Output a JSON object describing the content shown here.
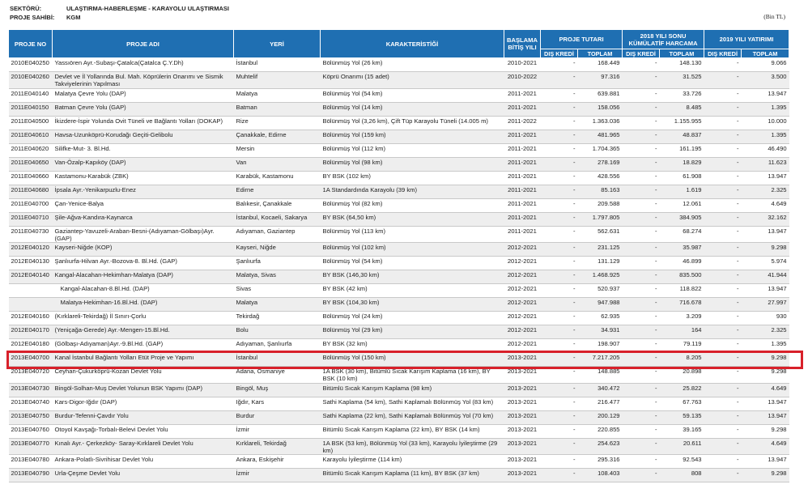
{
  "meta": {
    "sector_label": "SEKTÖRÜ:",
    "sector_value": "ULAŞTIRMA-HABERLEŞME - KARAYOLU ULAŞTIRMASI",
    "owner_label": "PROJE SAHİBİ:",
    "owner_value": "KGM",
    "unit": "(Bin TL)"
  },
  "headers": {
    "proje_no": "PROJE NO",
    "proje_adi": "PROJE ADI",
    "yeri": "YERİ",
    "karakteristik": "KARAKTERİSTİĞİ",
    "baslama_bitis": "BAŞLAMA BİTİŞ YILI",
    "proje_tutari": "PROJE TUTARI",
    "kumulatif": "2018 YILI SONU KÜMÜLATİF HARCAMA",
    "yatirim_2019": "2019 YILI YATIRIMI",
    "dis_kredi": "DIŞ KREDİ",
    "toplam": "TOPLAM"
  },
  "highlight_row": 23,
  "rows": [
    {
      "no": "2010E040250",
      "name": "Yassıören Ayr.-Subaşı-Çatalca(Çatalca Ç.Y.Dh)",
      "place": "İstanbul",
      "char": "Bölünmüş Yol (26 km)",
      "years": "2010-2021",
      "t_dk": "-",
      "t_top": "168.449",
      "k_dk": "-",
      "k_top": "148.130",
      "y_dk": "-",
      "y_top": "9.066"
    },
    {
      "no": "2010E040260",
      "name": "Devlet ve İl Yollarında Bul. Mah. Köprülerin Onarımı ve Sismik Takviyelerinin Yapılması",
      "place": "Muhtelif",
      "char": "Köprü Onarımı (15 adet)",
      "years": "2010-2022",
      "t_dk": "-",
      "t_top": "97.316",
      "k_dk": "-",
      "k_top": "31.525",
      "y_dk": "-",
      "y_top": "3.500"
    },
    {
      "no": "2011E040140",
      "name": "Malatya Çevre Yolu (DAP)",
      "place": "Malatya",
      "char": "Bölünmüş Yol (54 km)",
      "years": "2011-2021",
      "t_dk": "-",
      "t_top": "639.881",
      "k_dk": "-",
      "k_top": "33.726",
      "y_dk": "-",
      "y_top": "13.947"
    },
    {
      "no": "2011E040150",
      "name": "Batman Çevre Yolu (GAP)",
      "place": "Batman",
      "char": "Bölünmüş Yol (14 km)",
      "years": "2011-2021",
      "t_dk": "-",
      "t_top": "158.056",
      "k_dk": "-",
      "k_top": "8.485",
      "y_dk": "-",
      "y_top": "1.395"
    },
    {
      "no": "2011E040500",
      "name": "İkizdere-İspir Yolunda Ovit Tüneli ve Bağlantı Yolları (DOKAP)",
      "place": "Rize",
      "char": "Bölünmüş Yol (3,26 km), Çift Tüp Karayolu Tüneli (14.005 m)",
      "years": "2011-2022",
      "t_dk": "-",
      "t_top": "1.363.036",
      "k_dk": "-",
      "k_top": "1.155.955",
      "y_dk": "-",
      "y_top": "10.000"
    },
    {
      "no": "2011E040610",
      "name": "Havsa-Uzunköprü-Korudağı Geçiti-Gelibolu",
      "place": "Çanakkale, Edirne",
      "char": "Bölünmüş Yol (159 km)",
      "years": "2011-2021",
      "t_dk": "-",
      "t_top": "481.965",
      "k_dk": "-",
      "k_top": "48.837",
      "y_dk": "-",
      "y_top": "1.395"
    },
    {
      "no": "2011E040620",
      "name": "Silifke-Mut- 3. Bl.Hd.",
      "place": "Mersin",
      "char": "Bölünmüş Yol (112 km)",
      "years": "2011-2021",
      "t_dk": "-",
      "t_top": "1.704.365",
      "k_dk": "-",
      "k_top": "161.195",
      "y_dk": "-",
      "y_top": "46.490"
    },
    {
      "no": "2011E040650",
      "name": "Van-Özalp-Kapıköy (DAP)",
      "place": "Van",
      "char": "Bölünmüş Yol (98 km)",
      "years": "2011-2021",
      "t_dk": "-",
      "t_top": "278.169",
      "k_dk": "-",
      "k_top": "18.829",
      "y_dk": "-",
      "y_top": "11.623"
    },
    {
      "no": "2011E040660",
      "name": "Kastamonu-Karabük (ZBK)",
      "place": "Karabük, Kastamonu",
      "char": "BY BSK (102 km)",
      "years": "2011-2021",
      "t_dk": "-",
      "t_top": "428.556",
      "k_dk": "-",
      "k_top": "61.908",
      "y_dk": "-",
      "y_top": "13.947"
    },
    {
      "no": "2011E040680",
      "name": "İpsala Ayr.-Yenikarpuzlu-Enez",
      "place": "Edirne",
      "char": "1A Standardında Karayolu (39 km)",
      "years": "2011-2021",
      "t_dk": "-",
      "t_top": "85.163",
      "k_dk": "-",
      "k_top": "1.619",
      "y_dk": "-",
      "y_top": "2.325"
    },
    {
      "no": "2011E040700",
      "name": "Çan-Yenice-Balya",
      "place": "Balıkesir, Çanakkale",
      "char": "Bölünmüş Yol (82 km)",
      "years": "2011-2021",
      "t_dk": "-",
      "t_top": "209.588",
      "k_dk": "-",
      "k_top": "12.061",
      "y_dk": "-",
      "y_top": "4.649"
    },
    {
      "no": "2011E040710",
      "name": "Şile-Ağva-Kandıra-Kaynarca",
      "place": "İstanbul, Kocaeli, Sakarya",
      "char": "BY BSK (64,50 km)",
      "years": "2011-2021",
      "t_dk": "-",
      "t_top": "1.797.805",
      "k_dk": "-",
      "k_top": "384.905",
      "y_dk": "-",
      "y_top": "32.162"
    },
    {
      "no": "2011E040730",
      "name": "Gaziantep-Yavuzeli-Araban-Besni-(Adıyaman-Gölbaşı)Ayr. (GAP)",
      "place": "Adıyaman, Gaziantep",
      "char": "Bölünmüş Yol (113 km)",
      "years": "2011-2021",
      "t_dk": "-",
      "t_top": "562.631",
      "k_dk": "-",
      "k_top": "68.274",
      "y_dk": "-",
      "y_top": "13.947"
    },
    {
      "no": "2012E040120",
      "name": "Kayseri-Niğde (KOP)",
      "place": "Kayseri, Niğde",
      "char": "Bölünmüş Yol (102 km)",
      "years": "2012-2021",
      "t_dk": "-",
      "t_top": "231.125",
      "k_dk": "-",
      "k_top": "35.987",
      "y_dk": "-",
      "y_top": "9.298"
    },
    {
      "no": "2012E040130",
      "name": "Şanlıurfa-Hilvan Ayr.-Bozova-8. Bl.Hd. (GAP)",
      "place": "Şanlıurfa",
      "char": "Bölünmüş Yol (54 km)",
      "years": "2012-2021",
      "t_dk": "-",
      "t_top": "131.129",
      "k_dk": "-",
      "k_top": "46.899",
      "y_dk": "-",
      "y_top": "5.974"
    },
    {
      "no": "2012E040140",
      "name": "Kangal-Alacahan-Hekimhan-Malatya (DAP)",
      "place": "Malatya, Sivas",
      "char": "BY BSK (146,30 km)",
      "years": "2012-2021",
      "t_dk": "-",
      "t_top": "1.468.925",
      "k_dk": "-",
      "k_top": "835.500",
      "y_dk": "-",
      "y_top": "41.944"
    },
    {
      "no": "",
      "name": "Kangal-Alacahan-8.Bl.Hd. (DAP)",
      "place": "Sivas",
      "char": "BY BSK (42 km)",
      "years": "2012-2021",
      "t_dk": "-",
      "t_top": "520.937",
      "k_dk": "-",
      "k_top": "118.822",
      "y_dk": "-",
      "y_top": "13.947",
      "indent": true
    },
    {
      "no": "",
      "name": "Malatya-Hekimhan-16.Bl.Hd. (DAP)",
      "place": "Malatya",
      "char": "BY BSK (104,30 km)",
      "years": "2012-2021",
      "t_dk": "-",
      "t_top": "947.988",
      "k_dk": "-",
      "k_top": "716.678",
      "y_dk": "-",
      "y_top": "27.997",
      "indent": true
    },
    {
      "no": "2012E040160",
      "name": "(Kırklareli-Tekirdağ) İl Sınırı-Çorlu",
      "place": "Tekirdağ",
      "char": "Bölünmüş Yol (24 km)",
      "years": "2012-2021",
      "t_dk": "-",
      "t_top": "62.935",
      "k_dk": "-",
      "k_top": "3.209",
      "y_dk": "-",
      "y_top": "930"
    },
    {
      "no": "2012E040170",
      "name": "(Yeniçağa-Gerede) Ayr.-Mengen-15.Bl.Hd.",
      "place": "Bolu",
      "char": "Bölünmüş Yol (29 km)",
      "years": "2012-2021",
      "t_dk": "-",
      "t_top": "34.931",
      "k_dk": "-",
      "k_top": "164",
      "y_dk": "-",
      "y_top": "2.325"
    },
    {
      "no": "2012E040180",
      "name": "(Gölbaşı-Adıyaman)Ayr.-9.Bl.Hd. (GAP)",
      "place": "Adıyaman, Şanlıurfa",
      "char": "BY BSK (32 km)",
      "years": "2012-2021",
      "t_dk": "-",
      "t_top": "198.907",
      "k_dk": "-",
      "k_top": "79.119",
      "y_dk": "-",
      "y_top": "1.395"
    },
    {
      "no": "2013E040700",
      "name": "Kanal İstanbul Bağlantı Yolları Etüt Proje ve Yapımı",
      "place": "İstanbul",
      "char": "Bölünmüş Yol (150 km)",
      "years": "2013-2021",
      "t_dk": "-",
      "t_top": "7.217.205",
      "k_dk": "-",
      "k_top": "8.205",
      "y_dk": "-",
      "y_top": "9.298"
    },
    {
      "no": "2013E040720",
      "name": "Ceyhan-Çukurköprü-Kozan Devlet Yolu",
      "place": "Adana, Osmaniye",
      "char": "1A BSK (30 km), Bitümlü Sıcak Karışım Kaplama (16 km), BY BSK (10 km)",
      "years": "2013-2021",
      "t_dk": "-",
      "t_top": "148.885",
      "k_dk": "-",
      "k_top": "20.898",
      "y_dk": "-",
      "y_top": "9.298"
    },
    {
      "no": "2013E040730",
      "name": "Bingöl-Solhan-Muş Devlet Yolunun BSK Yapımı (DAP)",
      "place": "Bingöl, Muş",
      "char": "Bitümlü Sıcak Karışım Kaplama (98 km)",
      "years": "2013-2021",
      "t_dk": "-",
      "t_top": "340.472",
      "k_dk": "-",
      "k_top": "25.822",
      "y_dk": "-",
      "y_top": "4.649"
    },
    {
      "no": "2013E040740",
      "name": "Kars-Digor-Iğdır (DAP)",
      "place": "Iğdır, Kars",
      "char": "Sathi Kaplama (54 km), Sathi Kaplamalı Bölünmüş Yol (83 km)",
      "years": "2013-2021",
      "t_dk": "-",
      "t_top": "216.477",
      "k_dk": "-",
      "k_top": "67.763",
      "y_dk": "-",
      "y_top": "13.947"
    },
    {
      "no": "2013E040750",
      "name": "Burdur-Tefenni-Çavdır Yolu",
      "place": "Burdur",
      "char": "Sathi Kaplama (22 km), Sathi Kaplamalı Bölünmüş Yol (70 km)",
      "years": "2013-2021",
      "t_dk": "-",
      "t_top": "200.129",
      "k_dk": "-",
      "k_top": "59.135",
      "y_dk": "-",
      "y_top": "13.947"
    },
    {
      "no": "2013E040760",
      "name": "Otoyol Kavşağı-Torbalı-Belevi Devlet Yolu",
      "place": "İzmir",
      "char": "Bitümlü Sıcak Karışım Kaplama (22 km), BY BSK (14 km)",
      "years": "2013-2021",
      "t_dk": "-",
      "t_top": "220.855",
      "k_dk": "-",
      "k_top": "39.165",
      "y_dk": "-",
      "y_top": "9.298"
    },
    {
      "no": "2013E040770",
      "name": "Kınalı Ayr.- Çerkezköy- Saray-Kırklareli Devlet Yolu",
      "place": "Kırklareli, Tekirdağ",
      "char": "1A BSK (53 km), Bölünmüş Yol (33 km), Karayolu İyileştirme (29 km)",
      "years": "2013-2021",
      "t_dk": "-",
      "t_top": "254.623",
      "k_dk": "-",
      "k_top": "20.611",
      "y_dk": "-",
      "y_top": "4.649"
    },
    {
      "no": "2013E040780",
      "name": "Ankara-Polatlı-Sivrihisar Devlet Yolu",
      "place": "Ankara, Eskişehir",
      "char": "Karayolu İyileştirme (114 km)",
      "years": "2013-2021",
      "t_dk": "-",
      "t_top": "295.316",
      "k_dk": "-",
      "k_top": "92.543",
      "y_dk": "-",
      "y_top": "13.947"
    },
    {
      "no": "2013E040790",
      "name": "Urla-Çeşme Devlet Yolu",
      "place": "İzmir",
      "char": "Bitümlü Sıcak Karışım Kaplama (11 km), BY BSK (37 km)",
      "years": "2013-2021",
      "t_dk": "-",
      "t_top": "108.403",
      "k_dk": "-",
      "k_top": "808",
      "y_dk": "-",
      "y_top": "9.298"
    }
  ]
}
